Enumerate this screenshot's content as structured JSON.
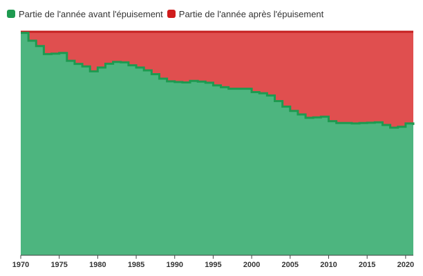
{
  "chart_data": {
    "type": "area",
    "title": "",
    "xlabel": "",
    "ylabel": "",
    "xlim": [
      1970,
      2021
    ],
    "ylim": [
      0,
      1
    ],
    "grid": false,
    "legend_position": "top-left",
    "x_ticks": [
      "1970",
      "1975",
      "1980",
      "1985",
      "1990",
      "1995",
      "2000",
      "2005",
      "2010",
      "2015",
      "2020"
    ],
    "series": [
      {
        "name": "Partie de l'année avant l'épuisement",
        "color": "#4db57f",
        "line_color": "#1e9a50",
        "x": [
          1970,
          1971,
          1972,
          1973,
          1974,
          1975,
          1976,
          1977,
          1978,
          1979,
          1980,
          1981,
          1982,
          1983,
          1984,
          1985,
          1986,
          1987,
          1988,
          1989,
          1990,
          1991,
          1992,
          1993,
          1994,
          1995,
          1996,
          1997,
          1998,
          1999,
          2000,
          2001,
          2002,
          2003,
          2004,
          2005,
          2006,
          2007,
          2008,
          2009,
          2010,
          2011,
          2012,
          2013,
          2014,
          2015,
          2016,
          2017,
          2018,
          2019,
          2020,
          2021
        ],
        "values": [
          0.995,
          0.96,
          0.936,
          0.9,
          0.902,
          0.905,
          0.87,
          0.856,
          0.845,
          0.823,
          0.84,
          0.857,
          0.865,
          0.863,
          0.85,
          0.84,
          0.827,
          0.81,
          0.79,
          0.778,
          0.775,
          0.773,
          0.78,
          0.777,
          0.772,
          0.76,
          0.752,
          0.745,
          0.745,
          0.745,
          0.73,
          0.725,
          0.715,
          0.69,
          0.665,
          0.646,
          0.63,
          0.615,
          0.617,
          0.62,
          0.6,
          0.592,
          0.592,
          0.59,
          0.592,
          0.593,
          0.595,
          0.583,
          0.571,
          0.575,
          0.59,
          0.583
        ]
      },
      {
        "name": "Partie de l'année après l'épuisement",
        "color": "#e04f4f",
        "line_color": "#c62020"
      }
    ]
  }
}
